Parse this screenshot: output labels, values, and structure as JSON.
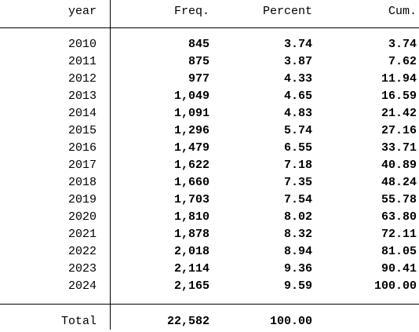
{
  "table": {
    "columns": [
      "year",
      "Freq.",
      "Percent",
      "Cum."
    ],
    "rows": [
      [
        "2010",
        "845",
        "3.74",
        "3.74"
      ],
      [
        "2011",
        "875",
        "3.87",
        "7.62"
      ],
      [
        "2012",
        "977",
        "4.33",
        "11.94"
      ],
      [
        "2013",
        "1,049",
        "4.65",
        "16.59"
      ],
      [
        "2014",
        "1,091",
        "4.83",
        "21.42"
      ],
      [
        "2015",
        "1,296",
        "5.74",
        "27.16"
      ],
      [
        "2016",
        "1,479",
        "6.55",
        "33.71"
      ],
      [
        "2017",
        "1,622",
        "7.18",
        "40.89"
      ],
      [
        "2018",
        "1,660",
        "7.35",
        "48.24"
      ],
      [
        "2019",
        "1,703",
        "7.54",
        "55.78"
      ],
      [
        "2020",
        "1,810",
        "8.02",
        "63.80"
      ],
      [
        "2021",
        "1,878",
        "8.32",
        "72.11"
      ],
      [
        "2022",
        "2,018",
        "8.94",
        "81.05"
      ],
      [
        "2023",
        "2,114",
        "9.36",
        "90.41"
      ],
      [
        "2024",
        "2,165",
        "9.59",
        "100.00"
      ]
    ],
    "total": [
      "Total",
      "22,582",
      "100.00"
    ]
  }
}
